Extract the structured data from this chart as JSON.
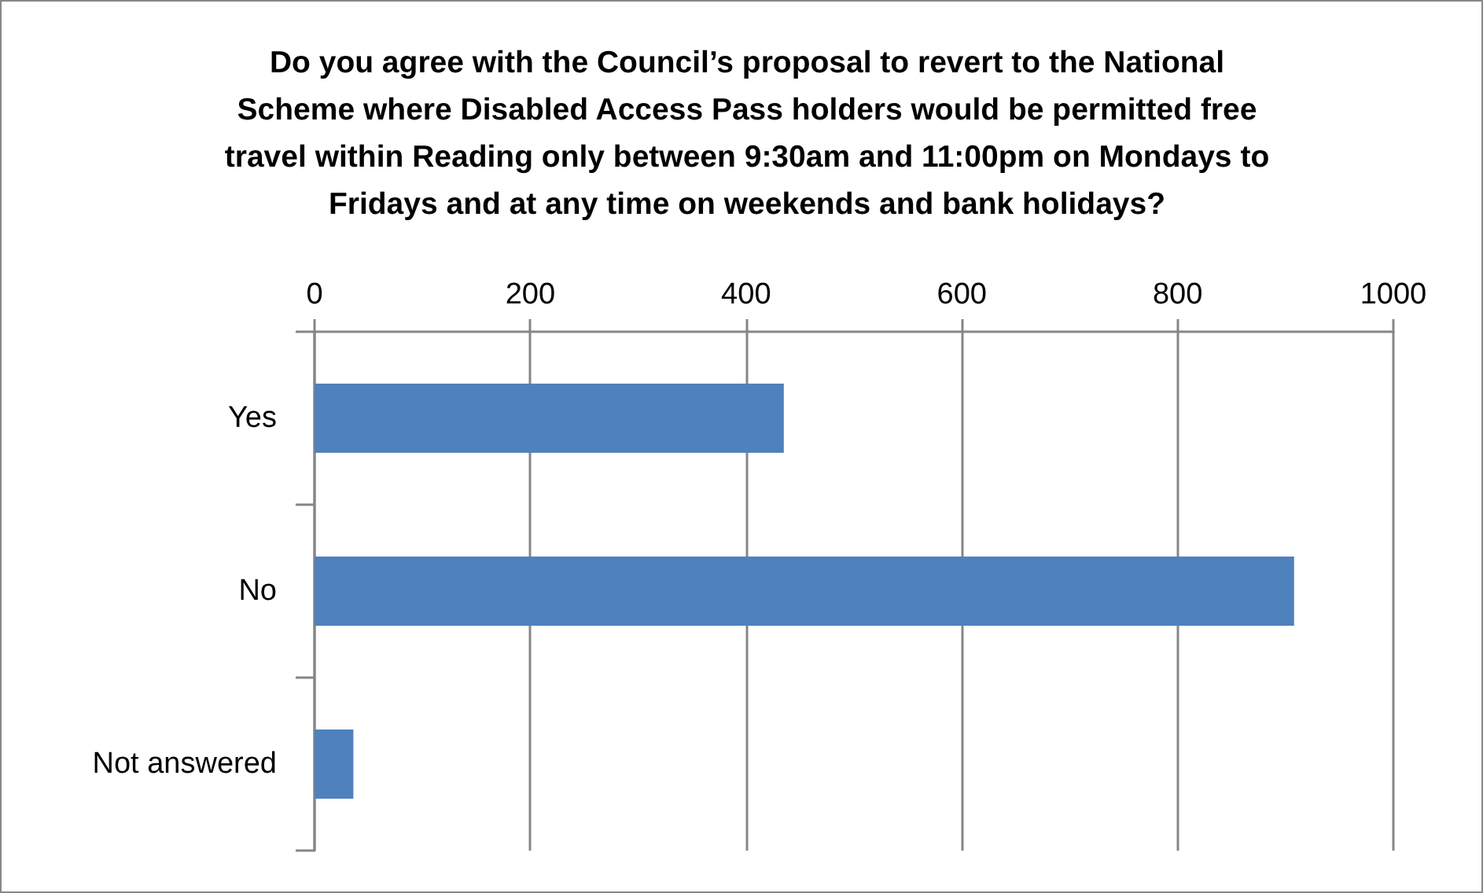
{
  "chart_data": {
    "type": "bar",
    "orientation": "horizontal",
    "title": "Do you agree with the Council’s proposal to revert to the National Scheme where Disabled Access Pass holders would be permitted free travel within Reading only between 9:30am and 11:00pm on Mondays to Fridays and at any time on weekends and bank holidays?",
    "categories": [
      "Yes",
      "No",
      "Not answered"
    ],
    "values": [
      435,
      908,
      36
    ],
    "color": "#4f81bd",
    "xlim": [
      0,
      1000
    ],
    "xticks": [
      0,
      200,
      400,
      600,
      800,
      1000
    ],
    "grid": "x"
  }
}
